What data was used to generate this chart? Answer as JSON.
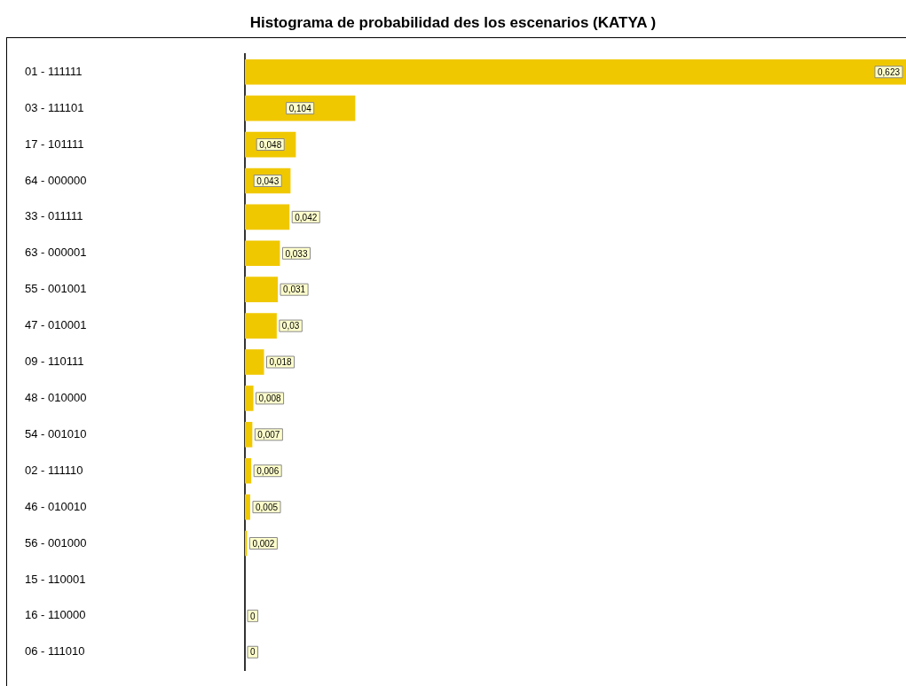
{
  "chart_data": {
    "type": "bar",
    "orientation": "horizontal",
    "title": "Histograma de probabilidad des los escenarios (KATYA )",
    "categories": [
      "01 - 111111",
      "03 - 111101",
      "17 - 101111",
      "64 - 000000",
      "33 - 011111",
      "63 - 000001",
      "55 - 001001",
      "47 - 010001",
      "09 - 110111",
      "48 - 010000",
      "54 - 001010",
      "02 - 111110",
      "46 - 010010",
      "56 - 001000",
      "15 - 110001",
      "16 - 110000",
      "06 - 111010"
    ],
    "values": [
      0.623,
      0.104,
      0.048,
      0.043,
      0.042,
      0.033,
      0.031,
      0.03,
      0.018,
      0.008,
      0.007,
      0.006,
      0.005,
      0.002,
      null,
      0,
      0
    ],
    "value_labels": [
      "0,623",
      "0,104",
      "0,048",
      "0,043",
      "0,042",
      "0,033",
      "0,031",
      "0,03",
      "0,018",
      "0,008",
      "0,007",
      "0,006",
      "0,005",
      "0,002",
      null,
      "0",
      "0"
    ],
    "color": "#f0c800",
    "grid": false,
    "legend": false
  }
}
